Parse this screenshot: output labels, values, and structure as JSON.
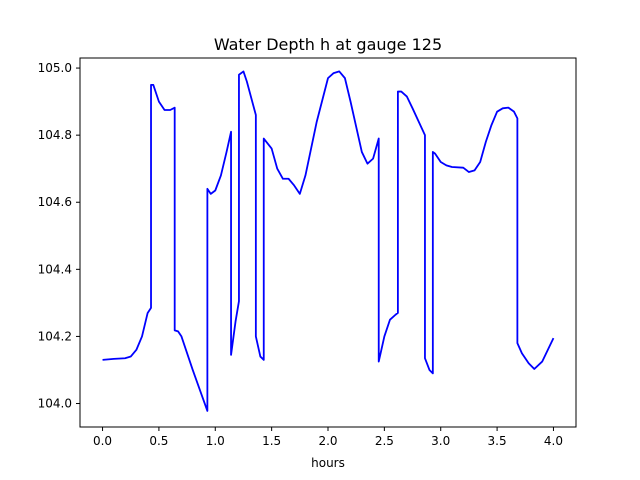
{
  "chart_data": {
    "type": "line",
    "title": "Water Depth h at gauge 125",
    "xlabel": "hours",
    "ylabel": "",
    "xlim": [
      -0.2,
      4.2
    ],
    "ylim": [
      103.93,
      105.03
    ],
    "grid": false,
    "line_color": "#0000ff",
    "xticks": [
      0.0,
      0.5,
      1.0,
      1.5,
      2.0,
      2.5,
      3.0,
      3.5,
      4.0
    ],
    "xtick_labels": [
      "0.0",
      "0.5",
      "1.0",
      "1.5",
      "2.0",
      "2.5",
      "3.0",
      "3.5",
      "4.0"
    ],
    "yticks": [
      104.0,
      104.2,
      104.4,
      104.6,
      104.8,
      105.0
    ],
    "ytick_labels": [
      "104.0",
      "104.2",
      "104.4",
      "104.6",
      "104.8",
      "105.0"
    ],
    "series": [
      {
        "x": [
          0.0,
          0.1,
          0.2,
          0.25,
          0.3,
          0.35,
          0.4,
          0.43,
          0.43,
          0.45,
          0.5,
          0.55,
          0.6,
          0.64,
          0.64,
          0.67,
          0.7,
          0.8,
          0.93,
          0.93,
          0.96,
          1.0,
          1.05,
          1.1,
          1.14,
          1.14,
          1.18,
          1.21,
          1.21,
          1.25,
          1.28,
          1.36,
          1.36,
          1.4,
          1.43,
          1.43,
          1.5,
          1.55,
          1.6,
          1.65,
          1.7,
          1.75,
          1.8,
          1.9,
          2.0,
          2.05,
          2.1,
          2.15,
          2.2,
          2.3,
          2.35,
          2.4,
          2.45,
          2.45,
          2.5,
          2.55,
          2.6,
          2.62,
          2.62,
          2.65,
          2.7,
          2.75,
          2.86,
          2.86,
          2.9,
          2.93,
          2.93,
          2.95,
          3.0,
          3.05,
          3.1,
          3.2,
          3.25,
          3.3,
          3.35,
          3.4,
          3.45,
          3.5,
          3.55,
          3.6,
          3.65,
          3.68,
          3.68,
          3.72,
          3.78,
          3.83,
          3.9,
          4.0
        ],
        "y": [
          104.13,
          104.133,
          104.135,
          104.14,
          104.16,
          104.2,
          104.27,
          104.285,
          104.95,
          104.95,
          104.9,
          104.875,
          104.875,
          104.882,
          104.218,
          104.215,
          104.2,
          104.1,
          103.978,
          104.64,
          104.625,
          104.635,
          104.68,
          104.75,
          104.81,
          104.145,
          104.245,
          104.305,
          104.98,
          104.99,
          104.96,
          104.86,
          104.2,
          104.14,
          104.13,
          104.79,
          104.76,
          104.7,
          104.67,
          104.67,
          104.65,
          104.625,
          104.68,
          104.84,
          104.97,
          104.985,
          104.99,
          104.97,
          104.9,
          104.75,
          104.715,
          104.73,
          104.79,
          104.125,
          104.2,
          104.25,
          104.265,
          104.27,
          104.93,
          104.93,
          104.915,
          104.88,
          104.8,
          104.135,
          104.1,
          104.09,
          104.75,
          104.745,
          104.72,
          104.71,
          104.705,
          104.703,
          104.69,
          104.695,
          104.72,
          104.78,
          104.83,
          104.87,
          104.88,
          104.882,
          104.87,
          104.85,
          104.18,
          104.15,
          104.12,
          104.103,
          104.125,
          104.195
        ]
      }
    ]
  }
}
